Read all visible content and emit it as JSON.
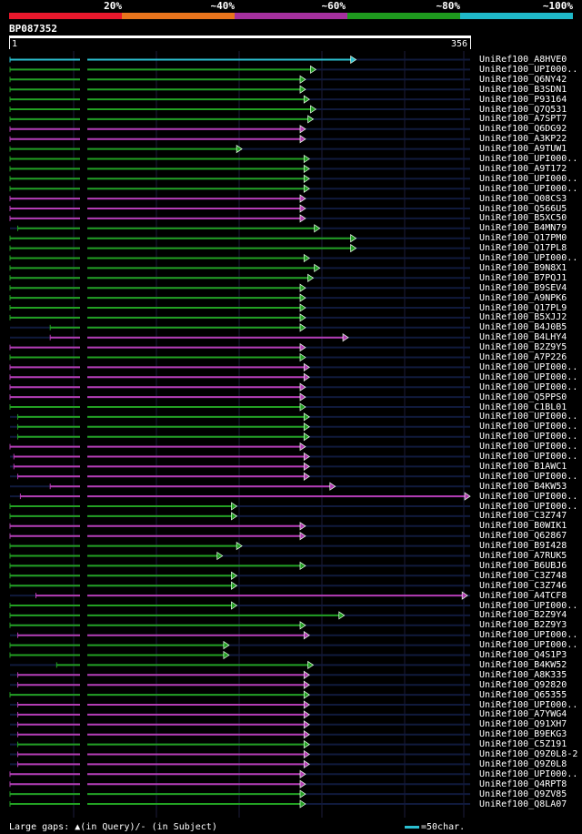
{
  "header": {
    "identity_scale": [
      "20%",
      "~40%",
      "~60%",
      "~80%",
      "~100%"
    ],
    "colors": [
      "#e8182c",
      "#e8741c",
      "#a5309e",
      "#1e9a1e",
      "#1fb8c8"
    ]
  },
  "query": {
    "id": "BP087352",
    "start": "1",
    "end": "356",
    "length": 356
  },
  "colors": {
    "cyan": "#2bbfd0",
    "green": "#22a022",
    "magenta": "#b43cb4",
    "gap": "#000000",
    "track": "#101a3c"
  },
  "hits": [
    {
      "name": "UniRef100_A8HVE0",
      "color": "cyan",
      "qstart": 1,
      "qend": 268
    },
    {
      "name": "UniRef100_UPI000..",
      "color": "green",
      "qstart": 1,
      "qend": 237
    },
    {
      "name": "UniRef100_Q6NY42",
      "color": "green",
      "qstart": 1,
      "qend": 229
    },
    {
      "name": "UniRef100_B3SDN1",
      "color": "green",
      "qstart": 1,
      "qend": 229
    },
    {
      "name": "UniRef100_P93164",
      "color": "green",
      "qstart": 1,
      "qend": 232
    },
    {
      "name": "UniRef100_Q7Q531",
      "color": "green",
      "qstart": 1,
      "qend": 237
    },
    {
      "name": "UniRef100_A7SPT7",
      "color": "green",
      "qstart": 1,
      "qend": 235
    },
    {
      "name": "UniRef100_Q6DG92",
      "color": "magenta",
      "qstart": 1,
      "qend": 229
    },
    {
      "name": "UniRef100_A3KP22",
      "color": "magenta",
      "qstart": 1,
      "qend": 229
    },
    {
      "name": "UniRef100_A9TUW1",
      "color": "green",
      "qstart": 1,
      "qend": 180
    },
    {
      "name": "UniRef100_UPI000..",
      "color": "green",
      "qstart": 1,
      "qend": 232
    },
    {
      "name": "UniRef100_A9T172",
      "color": "green",
      "qstart": 1,
      "qend": 232
    },
    {
      "name": "UniRef100_UPI000..",
      "color": "green",
      "qstart": 1,
      "qend": 232
    },
    {
      "name": "UniRef100_UPI000..",
      "color": "green",
      "qstart": 1,
      "qend": 232
    },
    {
      "name": "UniRef100_Q08CS3",
      "color": "magenta",
      "qstart": 1,
      "qend": 229
    },
    {
      "name": "UniRef100_Q566U5",
      "color": "magenta",
      "qstart": 1,
      "qend": 229
    },
    {
      "name": "UniRef100_B5XC50",
      "color": "magenta",
      "qstart": 1,
      "qend": 229
    },
    {
      "name": "UniRef100_B4MN79",
      "color": "green",
      "qstart": 7,
      "qend": 240
    },
    {
      "name": "UniRef100_Q17PM0",
      "color": "green",
      "qstart": 1,
      "qend": 268
    },
    {
      "name": "UniRef100_Q17PL8",
      "color": "green",
      "qstart": 1,
      "qend": 268
    },
    {
      "name": "UniRef100_UPI000..",
      "color": "green",
      "qstart": 1,
      "qend": 232
    },
    {
      "name": "UniRef100_B9N8X1",
      "color": "green",
      "qstart": 1,
      "qend": 240
    },
    {
      "name": "UniRef100_B7PQJ1",
      "color": "green",
      "qstart": 1,
      "qend": 235
    },
    {
      "name": "UniRef100_B9SEV4",
      "color": "green",
      "qstart": 1,
      "qend": 229
    },
    {
      "name": "UniRef100_A9NPK6",
      "color": "green",
      "qstart": 1,
      "qend": 229
    },
    {
      "name": "UniRef100_Q17PL9",
      "color": "green",
      "qstart": 1,
      "qend": 229
    },
    {
      "name": "UniRef100_B5XJJ2",
      "color": "green",
      "qstart": 1,
      "qend": 229
    },
    {
      "name": "UniRef100_B4J0B5",
      "color": "green",
      "qstart": 32,
      "qend": 229
    },
    {
      "name": "UniRef100_B4LHY4",
      "color": "magenta",
      "qstart": 32,
      "qend": 262
    },
    {
      "name": "UniRef100_B2Z9Y5",
      "color": "magenta",
      "qstart": 1,
      "qend": 229
    },
    {
      "name": "UniRef100_A7P226",
      "color": "green",
      "qstart": 1,
      "qend": 229
    },
    {
      "name": "UniRef100_UPI000..",
      "color": "magenta",
      "qstart": 1,
      "qend": 232
    },
    {
      "name": "UniRef100_UPI000..",
      "color": "magenta",
      "qstart": 1,
      "qend": 232
    },
    {
      "name": "UniRef100_UPI000..",
      "color": "magenta",
      "qstart": 1,
      "qend": 229
    },
    {
      "name": "UniRef100_Q5PPS0",
      "color": "magenta",
      "qstart": 1,
      "qend": 229
    },
    {
      "name": "UniRef100_C1BL01",
      "color": "green",
      "qstart": 1,
      "qend": 229
    },
    {
      "name": "UniRef100_UPI000..",
      "color": "green",
      "qstart": 7,
      "qend": 232
    },
    {
      "name": "UniRef100_UPI000..",
      "color": "green",
      "qstart": 7,
      "qend": 232
    },
    {
      "name": "UniRef100_UPI000..",
      "color": "green",
      "qstart": 7,
      "qend": 232
    },
    {
      "name": "UniRef100_UPI000..",
      "color": "magenta",
      "qstart": 1,
      "qend": 229
    },
    {
      "name": "UniRef100_UPI000..",
      "color": "magenta",
      "qstart": 4,
      "qend": 232
    },
    {
      "name": "UniRef100_B1AWC1",
      "color": "magenta",
      "qstart": 4,
      "qend": 232
    },
    {
      "name": "UniRef100_UPI000..",
      "color": "magenta",
      "qstart": 7,
      "qend": 232
    },
    {
      "name": "UniRef100_B4KW53",
      "color": "magenta",
      "qstart": 32,
      "qend": 252
    },
    {
      "name": "UniRef100_UPI000..",
      "color": "magenta",
      "qstart": 9,
      "qend": 356
    },
    {
      "name": "UniRef100_UPI000..",
      "color": "green",
      "qstart": 1,
      "qend": 176
    },
    {
      "name": "UniRef100_C3Z747",
      "color": "green",
      "qstart": 1,
      "qend": 176
    },
    {
      "name": "UniRef100_B0WIK1",
      "color": "magenta",
      "qstart": 1,
      "qend": 229
    },
    {
      "name": "UniRef100_Q62867",
      "color": "magenta",
      "qstart": 1,
      "qend": 229
    },
    {
      "name": "UniRef100_B9I428",
      "color": "green",
      "qstart": 1,
      "qend": 180
    },
    {
      "name": "UniRef100_A7RUK5",
      "color": "green",
      "qstart": 1,
      "qend": 165
    },
    {
      "name": "UniRef100_B6UBJ6",
      "color": "green",
      "qstart": 1,
      "qend": 229
    },
    {
      "name": "UniRef100_C3Z748",
      "color": "green",
      "qstart": 1,
      "qend": 176
    },
    {
      "name": "UniRef100_C3Z746",
      "color": "green",
      "qstart": 1,
      "qend": 176
    },
    {
      "name": "UniRef100_A4TCF8",
      "color": "magenta",
      "qstart": 21,
      "qend": 354
    },
    {
      "name": "UniRef100_UPI000..",
      "color": "green",
      "qstart": 1,
      "qend": 176
    },
    {
      "name": "UniRef100_B2Z9Y4",
      "color": "green",
      "qstart": 1,
      "qend": 259
    },
    {
      "name": "UniRef100_B2Z9Y3",
      "color": "green",
      "qstart": 1,
      "qend": 229
    },
    {
      "name": "UniRef100_UPI000..",
      "color": "magenta",
      "qstart": 7,
      "qend": 232
    },
    {
      "name": "UniRef100_UPI000..",
      "color": "green",
      "qstart": 1,
      "qend": 170
    },
    {
      "name": "UniRef100_Q4S1P3",
      "color": "green",
      "qstart": 1,
      "qend": 170
    },
    {
      "name": "UniRef100_B4KW52",
      "color": "green",
      "qstart": 37,
      "qend": 235
    },
    {
      "name": "UniRef100_A8K335",
      "color": "magenta",
      "qstart": 7,
      "qend": 232
    },
    {
      "name": "UniRef100_Q92820",
      "color": "magenta",
      "qstart": 7,
      "qend": 232
    },
    {
      "name": "UniRef100_Q65355",
      "color": "green",
      "qstart": 1,
      "qend": 232
    },
    {
      "name": "UniRef100_UPI000..",
      "color": "magenta",
      "qstart": 7,
      "qend": 232
    },
    {
      "name": "UniRef100_A7YWG4",
      "color": "magenta",
      "qstart": 7,
      "qend": 232
    },
    {
      "name": "UniRef100_Q91XH7",
      "color": "magenta",
      "qstart": 7,
      "qend": 232
    },
    {
      "name": "UniRef100_B9EKG3",
      "color": "magenta",
      "qstart": 7,
      "qend": 232
    },
    {
      "name": "UniRef100_C5Z191",
      "color": "green",
      "qstart": 7,
      "qend": 232
    },
    {
      "name": "UniRef100_Q9Z0L8-2",
      "color": "magenta",
      "qstart": 7,
      "qend": 232
    },
    {
      "name": "UniRef100_Q9Z0L8",
      "color": "magenta",
      "qstart": 7,
      "qend": 232
    },
    {
      "name": "UniRef100_UPI000..",
      "color": "magenta",
      "qstart": 1,
      "qend": 229
    },
    {
      "name": "UniRef100_Q4RPT8",
      "color": "magenta",
      "qstart": 1,
      "qend": 229
    },
    {
      "name": "UniRef100_Q9ZV85",
      "color": "green",
      "qstart": 1,
      "qend": 229
    },
    {
      "name": "UniRef100_Q8LA07",
      "color": "green",
      "qstart": 1,
      "qend": 229
    }
  ],
  "legend": {
    "large_gaps": "Large gaps:",
    "in_query": "(in Query)/",
    "in_subject": "(in Subject)",
    "scale_text": "=50char."
  }
}
